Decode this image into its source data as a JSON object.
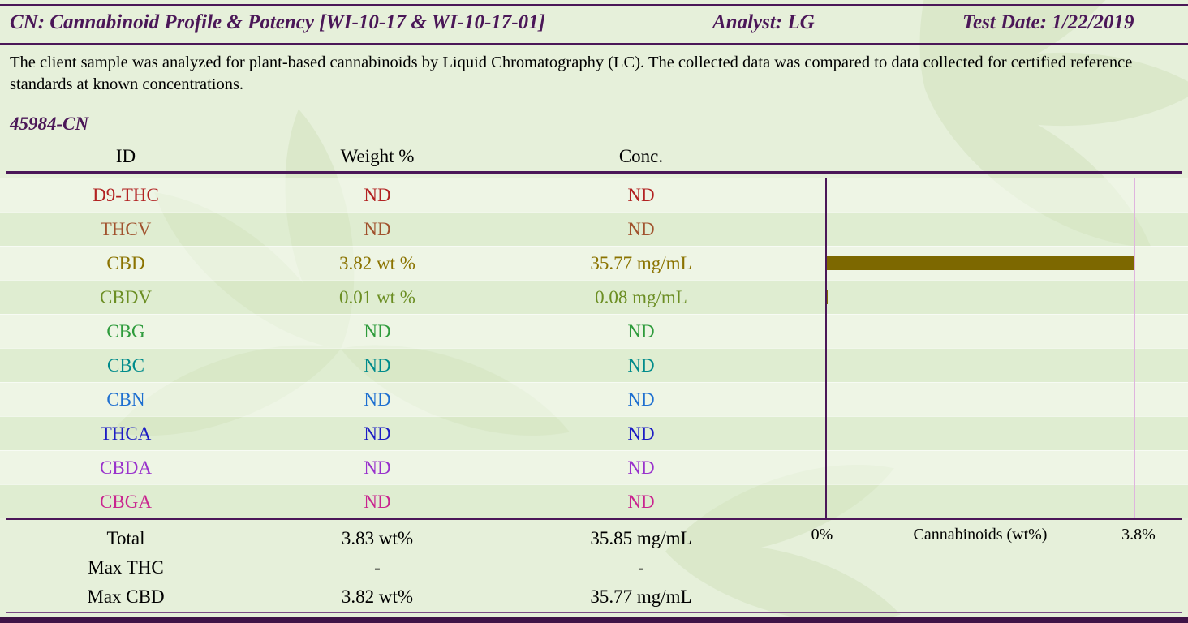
{
  "header": {
    "title": "CN: Cannabinoid Profile & Potency [WI-10-17 & WI-10-17-01]",
    "analyst": "Analyst: LG",
    "test_date": "Test Date: 1/22/2019"
  },
  "description": "The client sample was analyzed for plant-based cannabinoids by Liquid Chromatography (LC).  The collected data was compared to data collected for certified reference standards at known concentrations.",
  "sample_id": "45984-CN",
  "table": {
    "columns": [
      "ID",
      "Weight %",
      "Conc."
    ],
    "rows": [
      {
        "id": "D9-THC",
        "weight": "ND",
        "conc": "ND",
        "color": "#b22222"
      },
      {
        "id": "THCV",
        "weight": "ND",
        "conc": "ND",
        "color": "#a0522d"
      },
      {
        "id": "CBD",
        "weight": "3.82 wt %",
        "conc": "35.77 mg/mL",
        "color": "#8b7300"
      },
      {
        "id": "CBDV",
        "weight": "0.01 wt %",
        "conc": "0.08 mg/mL",
        "color": "#6b8e23"
      },
      {
        "id": "CBG",
        "weight": "ND",
        "conc": "ND",
        "color": "#2e9b3c"
      },
      {
        "id": "CBC",
        "weight": "ND",
        "conc": "ND",
        "color": "#008b8b"
      },
      {
        "id": "CBN",
        "weight": "ND",
        "conc": "ND",
        "color": "#1e6fd0"
      },
      {
        "id": "THCA",
        "weight": "ND",
        "conc": "ND",
        "color": "#1c1cc4"
      },
      {
        "id": "CBDA",
        "weight": "ND",
        "conc": "ND",
        "color": "#9932cc"
      },
      {
        "id": "CBGA",
        "weight": "ND",
        "conc": "ND",
        "color": "#c9248f"
      }
    ],
    "summary": [
      {
        "label": "Total",
        "weight": "3.83 wt%",
        "conc": "35.85 mg/mL"
      },
      {
        "label": "Max THC",
        "weight": "-",
        "conc": "-"
      },
      {
        "label": "Max CBD",
        "weight": "3.82 wt%",
        "conc": "35.77 mg/mL"
      }
    ]
  },
  "chart_data": {
    "type": "bar",
    "orientation": "horizontal",
    "categories": [
      "D9-THC",
      "THCV",
      "CBD",
      "CBDV",
      "CBG",
      "CBC",
      "CBN",
      "THCA",
      "CBDA",
      "CBGA"
    ],
    "values": [
      0,
      0,
      3.82,
      0.01,
      0,
      0,
      0,
      0,
      0,
      0
    ],
    "title": "Cannabinoids (wt%)",
    "xlabel": "Cannabinoids (wt%)",
    "xlim": [
      0,
      3.8
    ],
    "tick_labels": {
      "min": "0%",
      "max": "3.8%"
    },
    "bar_color": "#7d6800",
    "axis_color": "#4b1758",
    "gridline_color": "#dfb4de"
  }
}
